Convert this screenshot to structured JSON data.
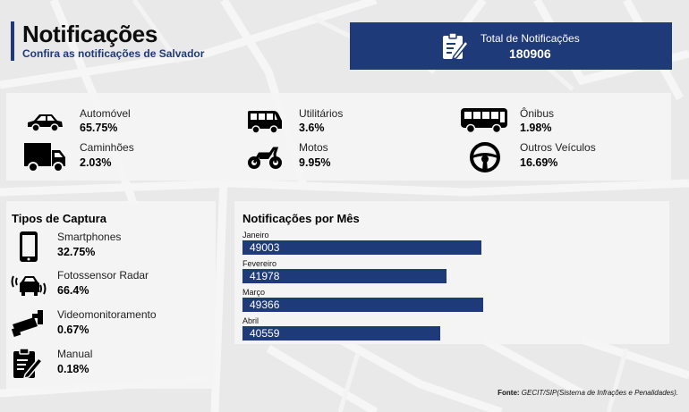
{
  "header": {
    "title": "Notificações",
    "subtitle": "Confira as notificações de Salvador"
  },
  "total": {
    "label": "Total de Notificações",
    "value": "180906",
    "icon": "edit-document-icon"
  },
  "vehicles": [
    {
      "name": "Automóvel",
      "value": "65.75%",
      "icon": "car-icon"
    },
    {
      "name": "Utilitários",
      "value": "3.6%",
      "icon": "van-icon"
    },
    {
      "name": "Ônibus",
      "value": "1.98%",
      "icon": "bus-icon"
    },
    {
      "name": "Caminhões",
      "value": "2.03%",
      "icon": "truck-icon"
    },
    {
      "name": "Motos",
      "value": "9.95%",
      "icon": "motorcycle-icon"
    },
    {
      "name": "Outros Veículos",
      "value": "16.69%",
      "icon": "steering-wheel-icon"
    }
  ],
  "captura": {
    "title": "Tipos de Captura",
    "items": [
      {
        "name": "Smartphones",
        "value": "32.75%",
        "icon": "smartphone-icon"
      },
      {
        "name": "Fotossensor Radar",
        "value": "66.4%",
        "icon": "radar-car-icon"
      },
      {
        "name": "Videomonitoramento",
        "value": "0.67%",
        "icon": "cctv-camera-icon"
      },
      {
        "name": "Manual",
        "value": "0.18%",
        "icon": "manual-form-icon"
      }
    ]
  },
  "mes": {
    "title": "Notificações por Mês",
    "max": 50000,
    "months": [
      {
        "month": "Janeiro",
        "label": "49003",
        "value": 49003
      },
      {
        "month": "Fevereiro",
        "label": "41978",
        "value": 41978
      },
      {
        "month": "Março",
        "label": "49366",
        "value": 49366
      },
      {
        "month": "Abril",
        "label": "40559",
        "value": 40559
      }
    ]
  },
  "fonte": {
    "label": "Fonte:",
    "text": "GECIT/SIP(Sistema de Infrações e Penalidades)."
  },
  "colors": {
    "brand": "#1f3a78",
    "background": "#e9e9ea"
  }
}
